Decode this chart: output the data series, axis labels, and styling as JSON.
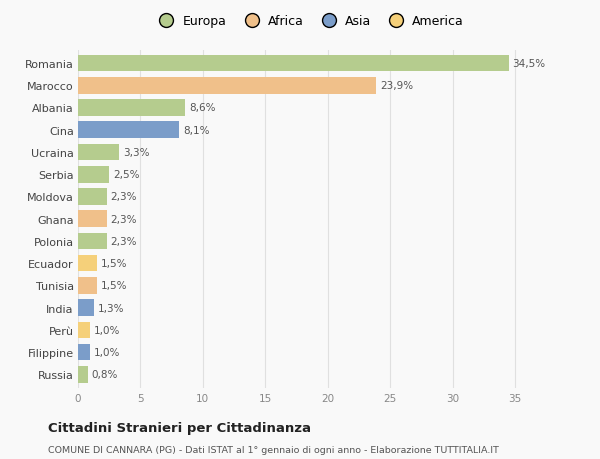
{
  "countries": [
    "Romania",
    "Marocco",
    "Albania",
    "Cina",
    "Ucraina",
    "Serbia",
    "Moldova",
    "Ghana",
    "Polonia",
    "Ecuador",
    "Tunisia",
    "India",
    "Perù",
    "Filippine",
    "Russia"
  ],
  "values": [
    34.5,
    23.9,
    8.6,
    8.1,
    3.3,
    2.5,
    2.3,
    2.3,
    2.3,
    1.5,
    1.5,
    1.3,
    1.0,
    1.0,
    0.8
  ],
  "labels": [
    "34,5%",
    "23,9%",
    "8,6%",
    "8,1%",
    "3,3%",
    "2,5%",
    "2,3%",
    "2,3%",
    "2,3%",
    "1,5%",
    "1,5%",
    "1,3%",
    "1,0%",
    "1,0%",
    "0,8%"
  ],
  "colors": [
    "#b5cc8e",
    "#f0c08a",
    "#b5cc8e",
    "#7b9dc9",
    "#b5cc8e",
    "#b5cc8e",
    "#b5cc8e",
    "#f0c08a",
    "#b5cc8e",
    "#f5d07a",
    "#f0c08a",
    "#7b9dc9",
    "#f5d07a",
    "#7b9dc9",
    "#b5cc8e"
  ],
  "legend_labels": [
    "Europa",
    "Africa",
    "Asia",
    "America"
  ],
  "legend_colors": [
    "#b5cc8e",
    "#f0c08a",
    "#7b9dc9",
    "#f5d07a"
  ],
  "title": "Cittadini Stranieri per Cittadinanza",
  "subtitle": "COMUNE DI CANNARA (PG) - Dati ISTAT al 1° gennaio di ogni anno - Elaborazione TUTTITALIA.IT",
  "xlim": [
    0,
    37
  ],
  "xticks": [
    0,
    5,
    10,
    15,
    20,
    25,
    30,
    35
  ],
  "background_color": "#f9f9f9",
  "grid_color": "#e0e0e0",
  "bar_height": 0.75,
  "label_fontsize": 7.5,
  "ytick_fontsize": 8.0,
  "xtick_fontsize": 7.5
}
